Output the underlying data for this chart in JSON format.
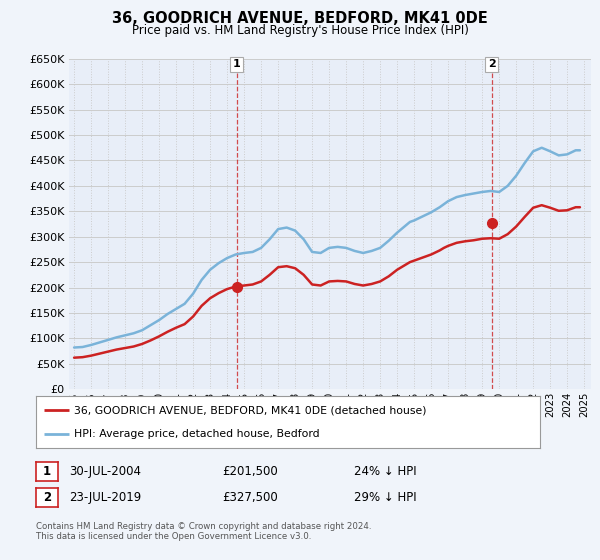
{
  "title": "36, GOODRICH AVENUE, BEDFORD, MK41 0DE",
  "subtitle": "Price paid vs. HM Land Registry's House Price Index (HPI)",
  "ylim": [
    0,
    650000
  ],
  "yticks": [
    0,
    50000,
    100000,
    150000,
    200000,
    250000,
    300000,
    350000,
    400000,
    450000,
    500000,
    550000,
    600000,
    650000
  ],
  "xlim_start": 1994.7,
  "xlim_end": 2025.4,
  "hpi_color": "#7ab3d9",
  "price_color": "#cc2222",
  "grid_color": "#cccccc",
  "background_color": "#f0f4fa",
  "plot_bg_color": "#e8eef8",
  "sale1_year": 2004.57,
  "sale1_price": 201500,
  "sale1_label": "1",
  "sale2_year": 2019.55,
  "sale2_price": 327500,
  "sale2_label": "2",
  "legend_line1": "36, GOODRICH AVENUE, BEDFORD, MK41 0DE (detached house)",
  "legend_line2": "HPI: Average price, detached house, Bedford",
  "table_row1": [
    "1",
    "30-JUL-2004",
    "£201,500",
    "24% ↓ HPI"
  ],
  "table_row2": [
    "2",
    "23-JUL-2019",
    "£327,500",
    "29% ↓ HPI"
  ],
  "footer": "Contains HM Land Registry data © Crown copyright and database right 2024.\nThis data is licensed under the Open Government Licence v3.0.",
  "hpi_x": [
    1995.0,
    1995.25,
    1995.5,
    1995.75,
    1996.0,
    1996.25,
    1996.5,
    1996.75,
    1997.0,
    1997.25,
    1997.5,
    1997.75,
    1998.0,
    1998.25,
    1998.5,
    1998.75,
    1999.0,
    1999.25,
    1999.5,
    1999.75,
    2000.0,
    2000.25,
    2000.5,
    2000.75,
    2001.0,
    2001.25,
    2001.5,
    2001.75,
    2002.0,
    2002.25,
    2002.5,
    2002.75,
    2003.0,
    2003.25,
    2003.5,
    2003.75,
    2004.0,
    2004.25,
    2004.5,
    2004.75,
    2005.0,
    2005.25,
    2005.5,
    2005.75,
    2006.0,
    2006.25,
    2006.5,
    2006.75,
    2007.0,
    2007.25,
    2007.5,
    2007.75,
    2008.0,
    2008.25,
    2008.5,
    2008.75,
    2009.0,
    2009.25,
    2009.5,
    2009.75,
    2010.0,
    2010.25,
    2010.5,
    2010.75,
    2011.0,
    2011.25,
    2011.5,
    2011.75,
    2012.0,
    2012.25,
    2012.5,
    2012.75,
    2013.0,
    2013.25,
    2013.5,
    2013.75,
    2014.0,
    2014.25,
    2014.5,
    2014.75,
    2015.0,
    2015.25,
    2015.5,
    2015.75,
    2016.0,
    2016.25,
    2016.5,
    2016.75,
    2017.0,
    2017.25,
    2017.5,
    2017.75,
    2018.0,
    2018.25,
    2018.5,
    2018.75,
    2019.0,
    2019.25,
    2019.5,
    2019.75,
    2020.0,
    2020.25,
    2020.5,
    2020.75,
    2021.0,
    2021.25,
    2021.5,
    2021.75,
    2022.0,
    2022.25,
    2022.5,
    2022.75,
    2023.0,
    2023.25,
    2023.5,
    2023.75,
    2024.0,
    2024.25,
    2024.5,
    2024.75
  ],
  "hpi_y": [
    82000,
    82500,
    83000,
    85000,
    87000,
    89500,
    92000,
    94500,
    97000,
    99500,
    102000,
    104000,
    106000,
    108000,
    110000,
    113000,
    116000,
    121000,
    126000,
    131000,
    136000,
    142000,
    148000,
    153000,
    158000,
    163000,
    168000,
    178000,
    188000,
    201500,
    215000,
    225000,
    235000,
    241500,
    248000,
    253000,
    258000,
    261500,
    265000,
    266500,
    268000,
    269000,
    270000,
    274000,
    278000,
    286500,
    295000,
    305000,
    315000,
    316500,
    318000,
    315000,
    312000,
    303500,
    295000,
    282500,
    270000,
    269000,
    268000,
    273000,
    278000,
    279000,
    280000,
    279000,
    278000,
    275000,
    272000,
    270000,
    268000,
    270000,
    272000,
    275000,
    278000,
    285000,
    292000,
    300000,
    308000,
    315000,
    322000,
    329000,
    332000,
    336000,
    340000,
    344000,
    348000,
    353000,
    358000,
    364000,
    370000,
    374000,
    378000,
    380000,
    382000,
    383500,
    385000,
    386500,
    388000,
    389000,
    390000,
    389000,
    388000,
    394000,
    400000,
    410000,
    420000,
    432500,
    445000,
    456500,
    468000,
    471500,
    475000,
    471500,
    468000,
    464000,
    460000,
    461000,
    462000,
    466000,
    470000,
    470000
  ],
  "price_x": [
    1995.0,
    1995.25,
    1995.5,
    1995.75,
    1996.0,
    1996.25,
    1996.5,
    1996.75,
    1997.0,
    1997.25,
    1997.5,
    1997.75,
    1998.0,
    1998.25,
    1998.5,
    1998.75,
    1999.0,
    1999.25,
    1999.5,
    1999.75,
    2000.0,
    2000.25,
    2000.5,
    2000.75,
    2001.0,
    2001.25,
    2001.5,
    2001.75,
    2002.0,
    2002.25,
    2002.5,
    2002.75,
    2003.0,
    2003.25,
    2003.5,
    2003.75,
    2004.0,
    2004.25,
    2004.5,
    2004.75,
    2005.0,
    2005.25,
    2005.5,
    2005.75,
    2006.0,
    2006.25,
    2006.5,
    2006.75,
    2007.0,
    2007.25,
    2007.5,
    2007.75,
    2008.0,
    2008.25,
    2008.5,
    2008.75,
    2009.0,
    2009.25,
    2009.5,
    2009.75,
    2010.0,
    2010.25,
    2010.5,
    2010.75,
    2011.0,
    2011.25,
    2011.5,
    2011.75,
    2012.0,
    2012.25,
    2012.5,
    2012.75,
    2013.0,
    2013.25,
    2013.5,
    2013.75,
    2014.0,
    2014.25,
    2014.5,
    2014.75,
    2015.0,
    2015.25,
    2015.5,
    2015.75,
    2016.0,
    2016.25,
    2016.5,
    2016.75,
    2017.0,
    2017.25,
    2017.5,
    2017.75,
    2018.0,
    2018.25,
    2018.5,
    2018.75,
    2019.0,
    2019.25,
    2019.5,
    2019.75,
    2020.0,
    2020.25,
    2020.5,
    2020.75,
    2021.0,
    2021.25,
    2021.5,
    2021.75,
    2022.0,
    2022.25,
    2022.5,
    2022.75,
    2023.0,
    2023.25,
    2023.5,
    2023.75,
    2024.0,
    2024.25,
    2024.5,
    2024.75
  ],
  "price_y": [
    62000,
    62500,
    63000,
    64500,
    66000,
    68000,
    70000,
    72000,
    74000,
    76000,
    78000,
    79500,
    81000,
    82500,
    84000,
    86500,
    89000,
    92500,
    96000,
    100000,
    104000,
    108500,
    113000,
    117000,
    121000,
    124500,
    128000,
    135500,
    143000,
    153500,
    164000,
    171500,
    179000,
    184000,
    189000,
    193000,
    197000,
    199500,
    202000,
    203000,
    204000,
    205000,
    206000,
    209000,
    212000,
    218500,
    225000,
    232500,
    240000,
    241000,
    242000,
    240000,
    238000,
    231500,
    225000,
    215500,
    206000,
    205000,
    204000,
    208000,
    212000,
    212500,
    213000,
    212500,
    212000,
    209500,
    207000,
    205500,
    204000,
    205500,
    207000,
    209500,
    212000,
    217000,
    222000,
    228500,
    235000,
    240000,
    245000,
    250000,
    253000,
    256000,
    259000,
    262000,
    265000,
    269000,
    273000,
    278000,
    282000,
    285000,
    288000,
    289500,
    291000,
    292000,
    293000,
    294500,
    296000,
    296500,
    297000,
    296500,
    296000,
    300500,
    305000,
    312500,
    320000,
    329500,
    339000,
    348000,
    357000,
    359500,
    362000,
    359500,
    357000,
    354000,
    351000,
    351500,
    352000,
    355000,
    358000,
    358000
  ]
}
